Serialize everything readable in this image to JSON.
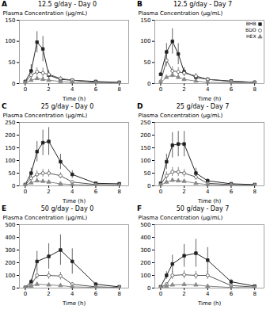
{
  "chart_data": [
    {
      "type": "line",
      "title": "12.5 g/day - Day 0",
      "annotations": [
        "A"
      ],
      "xlabel": "Time (h)",
      "ylabel": "Plasma Concentration (µg/mL)",
      "x": [
        0,
        0.5,
        1,
        1.5,
        2,
        3,
        4,
        6,
        8
      ],
      "xlim": [
        -0.5,
        8.8
      ],
      "xticks": [
        0,
        2,
        4,
        6,
        8
      ],
      "ylim": [
        0,
        150
      ],
      "yticks": [
        0,
        50,
        100,
        150
      ],
      "series": [
        {
          "name": "BHB",
          "color": "#222222",
          "marker": "square",
          "values": [
            5,
            30,
            98,
            82,
            20,
            10,
            8,
            5,
            3
          ],
          "yerr": [
            2,
            15,
            25,
            30,
            8,
            5,
            3,
            2,
            1
          ]
        },
        {
          "name": "BDO",
          "color": "#555555",
          "marker": "circle_open",
          "values": [
            3,
            20,
            28,
            25,
            22,
            12,
            8,
            3,
            2
          ],
          "yerr": [
            1,
            8,
            10,
            12,
            10,
            5,
            3,
            1,
            1
          ]
        },
        {
          "name": "HEX",
          "color": "#888888",
          "marker": "triangle",
          "values": [
            2,
            8,
            12,
            10,
            8,
            5,
            3,
            2,
            1
          ],
          "yerr": [
            1,
            3,
            4,
            4,
            3,
            2,
            1,
            1,
            0.5
          ]
        }
      ]
    },
    {
      "type": "line",
      "title": "12.5 g/day - Day 7",
      "annotations": [
        "B"
      ],
      "xlabel": "Time (h)",
      "ylabel": "Plasma Concentration (µg/mL)",
      "x": [
        0,
        0.5,
        1,
        1.5,
        2,
        3,
        4,
        6,
        8
      ],
      "xlim": [
        -0.5,
        8.8
      ],
      "xticks": [
        0,
        2,
        4,
        6,
        8
      ],
      "ylim": [
        0,
        150
      ],
      "yticks": [
        0,
        50,
        100,
        150
      ],
      "legend": "upper right",
      "series": [
        {
          "name": "BHB",
          "color": "#222222",
          "marker": "square",
          "values": [
            22,
            75,
            100,
            70,
            28,
            15,
            10,
            6,
            3
          ],
          "yerr": [
            5,
            20,
            30,
            25,
            10,
            6,
            4,
            2,
            1
          ]
        },
        {
          "name": "BDO",
          "color": "#555555",
          "marker": "circle_open",
          "values": [
            5,
            55,
            30,
            28,
            25,
            18,
            10,
            5,
            3
          ],
          "yerr": [
            2,
            15,
            10,
            10,
            8,
            6,
            4,
            2,
            1
          ]
        },
        {
          "name": "HEX",
          "color": "#888888",
          "marker": "triangle",
          "values": [
            2,
            15,
            20,
            15,
            10,
            6,
            3,
            2,
            1
          ],
          "yerr": [
            1,
            5,
            6,
            5,
            4,
            2,
            1,
            1,
            0.5
          ]
        }
      ]
    },
    {
      "type": "line",
      "title": "25 g/day - Day 0",
      "annotations": [
        "C"
      ],
      "xlabel": "Time (h)",
      "ylabel": "Plasma Concentration (µg/mL)",
      "x": [
        0,
        0.5,
        1,
        1.5,
        2,
        3,
        4,
        6,
        8
      ],
      "xlim": [
        -0.5,
        8.8
      ],
      "xticks": [
        0,
        2,
        4,
        6,
        8
      ],
      "ylim": [
        0,
        250
      ],
      "yticks": [
        0,
        50,
        100,
        150,
        200,
        250
      ],
      "series": [
        {
          "name": "BHB",
          "color": "#222222",
          "marker": "square",
          "values": [
            5,
            50,
            135,
            170,
            175,
            95,
            45,
            10,
            8
          ],
          "yerr": [
            2,
            20,
            40,
            50,
            55,
            30,
            15,
            4,
            3
          ]
        },
        {
          "name": "BDO",
          "color": "#555555",
          "marker": "circle_open",
          "values": [
            3,
            30,
            45,
            50,
            50,
            40,
            15,
            5,
            3
          ],
          "yerr": [
            1,
            10,
            15,
            15,
            15,
            12,
            5,
            2,
            1
          ]
        },
        {
          "name": "HEX",
          "color": "#888888",
          "marker": "triangle",
          "values": [
            2,
            12,
            20,
            18,
            15,
            8,
            5,
            2,
            1
          ],
          "yerr": [
            1,
            4,
            6,
            5,
            5,
            3,
            2,
            1,
            0.5
          ]
        }
      ]
    },
    {
      "type": "line",
      "title": "25 g/day - Day 7",
      "annotations": [
        "D"
      ],
      "xlabel": "Time (h)",
      "ylabel": "Plasma Concentration (µg/mL)",
      "x": [
        0,
        0.5,
        1,
        1.5,
        2,
        3,
        4,
        6,
        8
      ],
      "xlim": [
        -0.5,
        8.8
      ],
      "xticks": [
        0,
        2,
        4,
        6,
        8
      ],
      "ylim": [
        0,
        250
      ],
      "yticks": [
        0,
        50,
        100,
        150,
        200,
        250
      ],
      "series": [
        {
          "name": "BHB",
          "color": "#222222",
          "marker": "square",
          "values": [
            10,
            95,
            160,
            165,
            165,
            50,
            20,
            8,
            5
          ],
          "yerr": [
            3,
            30,
            50,
            50,
            50,
            20,
            8,
            3,
            2
          ]
        },
        {
          "name": "BDO",
          "color": "#555555",
          "marker": "circle_open",
          "values": [
            5,
            40,
            55,
            55,
            50,
            35,
            10,
            5,
            3
          ],
          "yerr": [
            2,
            15,
            18,
            18,
            15,
            12,
            4,
            2,
            1
          ]
        },
        {
          "name": "HEX",
          "color": "#888888",
          "marker": "triangle",
          "values": [
            2,
            15,
            22,
            20,
            18,
            10,
            5,
            2,
            1
          ],
          "yerr": [
            1,
            5,
            7,
            6,
            6,
            4,
            2,
            1,
            0.5
          ]
        }
      ]
    },
    {
      "type": "line",
      "title": "50 g/day - Day 0",
      "annotations": [
        "E"
      ],
      "xlabel": "Time (h)",
      "ylabel": "Plasma Concentration (µg/mL)",
      "x": [
        0,
        0.5,
        1,
        2,
        3,
        4,
        6,
        8
      ],
      "xlim": [
        -0.5,
        8.8
      ],
      "xticks": [
        0,
        2,
        4,
        6,
        8
      ],
      "ylim": [
        0,
        500
      ],
      "yticks": [
        0,
        100,
        200,
        300,
        400,
        500
      ],
      "series": [
        {
          "name": "BHB",
          "color": "#222222",
          "marker": "square",
          "values": [
            5,
            50,
            210,
            250,
            300,
            210,
            30,
            10
          ],
          "yerr": [
            2,
            20,
            80,
            100,
            120,
            100,
            15,
            5
          ]
        },
        {
          "name": "BDO",
          "color": "#555555",
          "marker": "circle_open",
          "values": [
            3,
            25,
            100,
            100,
            95,
            30,
            10,
            5
          ],
          "yerr": [
            1,
            10,
            30,
            30,
            30,
            15,
            5,
            2
          ]
        },
        {
          "name": "HEX",
          "color": "#888888",
          "marker": "triangle",
          "values": [
            2,
            15,
            30,
            25,
            20,
            10,
            5,
            2
          ],
          "yerr": [
            1,
            5,
            10,
            8,
            6,
            4,
            2,
            1
          ]
        }
      ]
    },
    {
      "type": "line",
      "title": "50 g/day - Day 7",
      "annotations": [
        "F"
      ],
      "xlabel": "Time (h)",
      "ylabel": "Plasma Concentration (µg/mL)",
      "x": [
        0,
        0.5,
        1,
        2,
        3,
        4,
        6,
        8
      ],
      "xlim": [
        -0.5,
        8.8
      ],
      "xticks": [
        0,
        2,
        4,
        6,
        8
      ],
      "ylim": [
        0,
        500
      ],
      "yticks": [
        0,
        100,
        200,
        300,
        400,
        500
      ],
      "series": [
        {
          "name": "BHB",
          "color": "#222222",
          "marker": "square",
          "values": [
            10,
            100,
            190,
            255,
            275,
            220,
            50,
            15
          ],
          "yerr": [
            3,
            30,
            70,
            90,
            110,
            100,
            20,
            5
          ]
        },
        {
          "name": "BDO",
          "color": "#555555",
          "marker": "circle_open",
          "values": [
            5,
            30,
            100,
            105,
            100,
            100,
            20,
            8
          ],
          "yerr": [
            2,
            12,
            30,
            32,
            32,
            30,
            8,
            3
          ]
        },
        {
          "name": "HEX",
          "color": "#888888",
          "marker": "triangle",
          "values": [
            2,
            15,
            25,
            28,
            25,
            15,
            5,
            2
          ],
          "yerr": [
            1,
            5,
            8,
            8,
            8,
            5,
            2,
            1
          ]
        }
      ]
    }
  ]
}
